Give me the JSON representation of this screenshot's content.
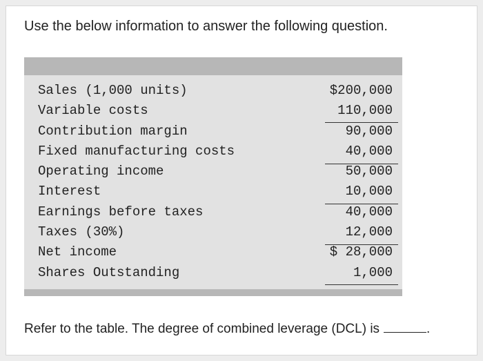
{
  "question": {
    "intro": "Use the below information to answer the following question.",
    "prompt": "Refer to the table. The degree of combined leverage (DCL) is",
    "prompt_end": "."
  },
  "table": {
    "rows": [
      {
        "label": "Sales (1,000 units)",
        "value": "$200,000"
      },
      {
        "label": "Variable costs",
        "value": "110,000"
      },
      {
        "label": "Contribution margin",
        "value": "90,000"
      },
      {
        "label": "Fixed manufacturing costs",
        "value": "40,000"
      },
      {
        "label": "Operating income",
        "value": "50,000"
      },
      {
        "label": "Interest",
        "value": "10,000"
      },
      {
        "label": "Earnings before taxes",
        "value": "40,000"
      },
      {
        "label": "Taxes (30%)",
        "value": "12,000"
      },
      {
        "label": "Net income",
        "value": "$ 28,000"
      },
      {
        "label": "Shares Outstanding",
        "value": "1,000"
      }
    ]
  }
}
